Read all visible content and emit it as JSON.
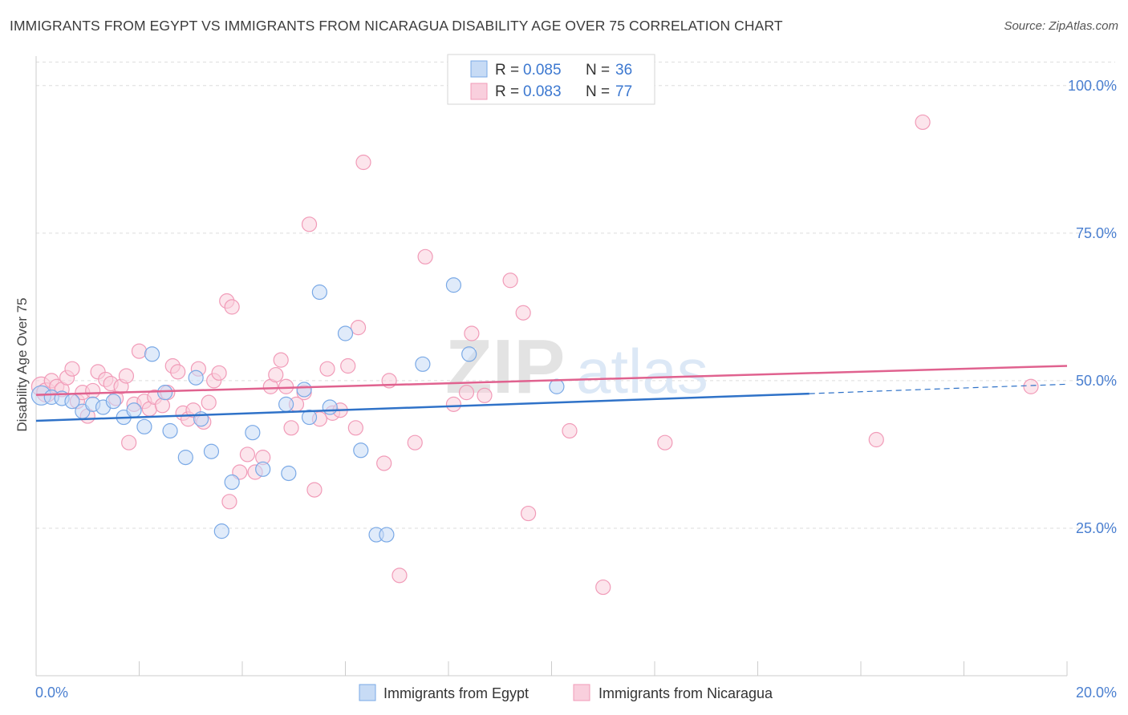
{
  "title": "IMMIGRANTS FROM EGYPT VS IMMIGRANTS FROM NICARAGUA DISABILITY AGE OVER 75 CORRELATION CHART",
  "source": "Source: ZipAtlas.com",
  "watermark": {
    "part1": "ZIP",
    "part2": "atlas"
  },
  "chart_data": {
    "type": "scatter",
    "ylabel": "Disability Age Over 75",
    "xlim": [
      0,
      20
    ],
    "ylim": [
      0,
      105
    ],
    "y_ticks": [
      {
        "value": 25,
        "label": "25.0%"
      },
      {
        "value": 50,
        "label": "50.0%"
      },
      {
        "value": 75,
        "label": "75.0%"
      },
      {
        "value": 100,
        "label": "100.0%"
      }
    ],
    "x_tick_labels": {
      "min": "0.0%",
      "max": "20.0%"
    },
    "grid": true,
    "legend": {
      "placement": "top-center",
      "rows": [
        {
          "r_label": "R =",
          "r_value": "0.085",
          "n_label": "N =",
          "n_value": "36"
        },
        {
          "r_label": "R =",
          "r_value": "0.083",
          "n_label": "N =",
          "n_value": "77"
        }
      ]
    },
    "series": [
      {
        "name": "Immigrants from Egypt",
        "color": "#7aa9e6",
        "fill": "#c7dbf5",
        "line_color": "#2f72c8",
        "trend": {
          "x0": 0,
          "y0": 43.2,
          "x1": 15.0,
          "y1": 47.8,
          "dash_x1": 20.0,
          "dash_y1": 49.4
        },
        "points": [
          [
            0.1,
            47.5
          ],
          [
            0.3,
            47.2
          ],
          [
            0.5,
            47.0
          ],
          [
            0.7,
            46.5
          ],
          [
            0.9,
            44.8
          ],
          [
            1.1,
            46.0
          ],
          [
            1.3,
            45.5
          ],
          [
            1.5,
            46.5
          ],
          [
            1.7,
            43.8
          ],
          [
            1.9,
            45.0
          ],
          [
            2.1,
            42.2
          ],
          [
            2.25,
            54.5
          ],
          [
            2.5,
            48.0
          ],
          [
            2.6,
            41.5
          ],
          [
            2.9,
            37.0
          ],
          [
            3.1,
            50.5
          ],
          [
            3.2,
            43.5
          ],
          [
            3.4,
            38.0
          ],
          [
            3.6,
            24.5
          ],
          [
            3.8,
            32.8
          ],
          [
            4.2,
            41.2
          ],
          [
            4.4,
            35.0
          ],
          [
            4.9,
            34.3
          ],
          [
            4.85,
            46.0
          ],
          [
            5.2,
            48.5
          ],
          [
            5.3,
            43.8
          ],
          [
            5.5,
            65.0
          ],
          [
            5.7,
            45.5
          ],
          [
            6.0,
            58.0
          ],
          [
            6.3,
            38.2
          ],
          [
            6.6,
            23.9
          ],
          [
            6.8,
            23.9
          ],
          [
            7.5,
            52.8
          ],
          [
            8.1,
            66.2
          ],
          [
            8.4,
            54.5
          ],
          [
            10.1,
            49.0
          ]
        ]
      },
      {
        "name": "Immigrants from Nicaragua",
        "color": "#f19bb8",
        "fill": "#f9cfdd",
        "line_color": "#e0628f",
        "trend": {
          "x0": 0,
          "y0": 47.6,
          "x1": 20.0,
          "y1": 52.5
        },
        "points": [
          [
            0.1,
            49.0
          ],
          [
            0.2,
            48.0
          ],
          [
            0.3,
            50.0
          ],
          [
            0.4,
            49.0
          ],
          [
            0.5,
            48.5
          ],
          [
            0.6,
            50.5
          ],
          [
            0.7,
            52.0
          ],
          [
            0.8,
            46.5
          ],
          [
            0.9,
            48.0
          ],
          [
            1.0,
            44.0
          ],
          [
            1.1,
            48.3
          ],
          [
            1.2,
            51.5
          ],
          [
            1.35,
            50.2
          ],
          [
            1.45,
            49.5
          ],
          [
            1.55,
            47.0
          ],
          [
            1.65,
            49.0
          ],
          [
            1.75,
            50.8
          ],
          [
            1.8,
            39.5
          ],
          [
            1.9,
            46.0
          ],
          [
            2.0,
            55.0
          ],
          [
            2.1,
            46.5
          ],
          [
            2.2,
            45.2
          ],
          [
            2.3,
            47.2
          ],
          [
            2.45,
            45.8
          ],
          [
            2.55,
            48.0
          ],
          [
            2.65,
            52.5
          ],
          [
            2.75,
            51.5
          ],
          [
            2.85,
            44.5
          ],
          [
            2.95,
            43.5
          ],
          [
            3.05,
            45.0
          ],
          [
            3.15,
            52.0
          ],
          [
            3.25,
            43.0
          ],
          [
            3.35,
            46.3
          ],
          [
            3.45,
            50.0
          ],
          [
            3.55,
            51.3
          ],
          [
            3.7,
            63.5
          ],
          [
            3.8,
            62.5
          ],
          [
            3.75,
            29.5
          ],
          [
            3.95,
            34.5
          ],
          [
            4.1,
            37.5
          ],
          [
            4.25,
            34.5
          ],
          [
            4.4,
            37.0
          ],
          [
            4.55,
            49.0
          ],
          [
            4.65,
            51.0
          ],
          [
            4.75,
            53.5
          ],
          [
            4.85,
            49.0
          ],
          [
            4.95,
            42.0
          ],
          [
            5.05,
            46.0
          ],
          [
            5.2,
            48.0
          ],
          [
            5.3,
            76.5
          ],
          [
            5.4,
            31.5
          ],
          [
            5.5,
            43.5
          ],
          [
            5.65,
            52.0
          ],
          [
            5.75,
            44.5
          ],
          [
            5.9,
            45.0
          ],
          [
            6.05,
            52.5
          ],
          [
            6.25,
            59.0
          ],
          [
            6.2,
            42.0
          ],
          [
            6.35,
            87.0
          ],
          [
            6.75,
            36.0
          ],
          [
            6.85,
            50.0
          ],
          [
            7.05,
            17.0
          ],
          [
            7.35,
            39.5
          ],
          [
            7.55,
            71.0
          ],
          [
            8.1,
            46.0
          ],
          [
            8.35,
            48.0
          ],
          [
            8.45,
            58.0
          ],
          [
            9.2,
            67.0
          ],
          [
            9.45,
            61.5
          ],
          [
            9.55,
            27.5
          ],
          [
            10.35,
            41.5
          ],
          [
            11.0,
            15.0
          ],
          [
            12.2,
            39.5
          ],
          [
            16.3,
            40.0
          ],
          [
            17.2,
            93.8
          ],
          [
            19.3,
            49.0
          ],
          [
            8.7,
            47.5
          ]
        ]
      }
    ]
  }
}
